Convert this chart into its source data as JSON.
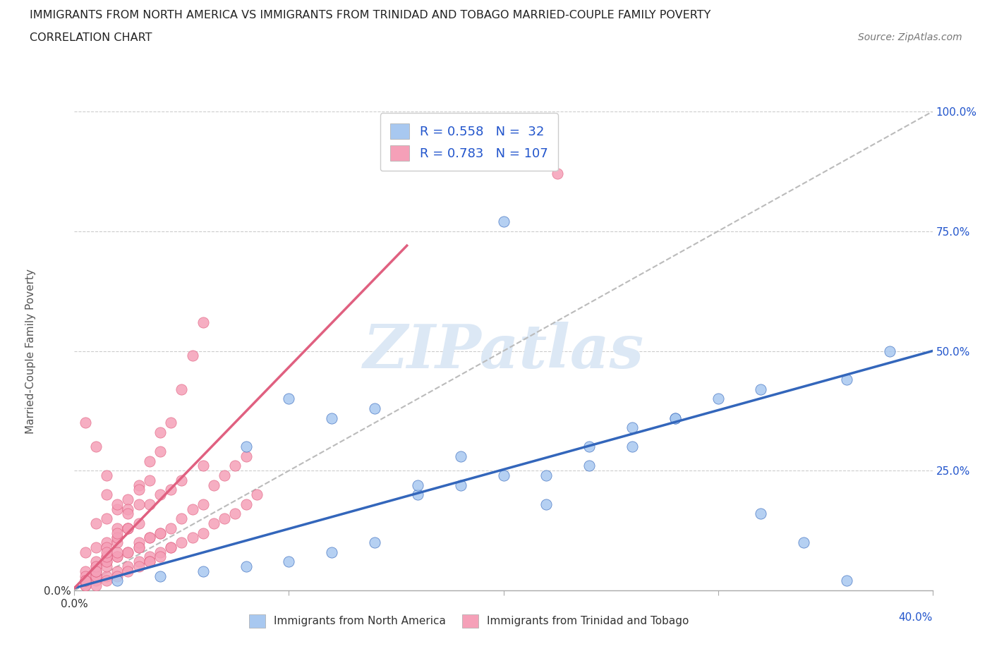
{
  "title_line1": "IMMIGRANTS FROM NORTH AMERICA VS IMMIGRANTS FROM TRINIDAD AND TOBAGO MARRIED-COUPLE FAMILY POVERTY",
  "title_line2": "CORRELATION CHART",
  "source_text": "Source: ZipAtlas.com",
  "ylabel": "Married-Couple Family Poverty",
  "blue_R": 0.558,
  "blue_N": 32,
  "pink_R": 0.783,
  "pink_N": 107,
  "blue_color": "#a8c8f0",
  "pink_color": "#f5a0b8",
  "blue_line_color": "#3366bb",
  "pink_line_color": "#e06080",
  "gray_dash_color": "#bbbbbb",
  "watermark_color": "#dce8f5",
  "legend_text_color": "#2255cc",
  "background_color": "#ffffff",
  "xmin": 0.0,
  "xmax": 0.4,
  "ymin": 0.0,
  "ymax": 1.0,
  "blue_scatter_x": [
    0.02,
    0.04,
    0.06,
    0.08,
    0.1,
    0.12,
    0.14,
    0.16,
    0.18,
    0.2,
    0.22,
    0.24,
    0.26,
    0.28,
    0.3,
    0.32,
    0.34,
    0.36,
    0.38,
    0.2,
    0.08,
    0.1,
    0.12,
    0.16,
    0.22,
    0.24,
    0.28,
    0.32,
    0.36,
    0.26,
    0.18,
    0.14
  ],
  "blue_scatter_y": [
    0.02,
    0.03,
    0.04,
    0.05,
    0.06,
    0.08,
    0.1,
    0.2,
    0.22,
    0.24,
    0.18,
    0.26,
    0.3,
    0.36,
    0.4,
    0.16,
    0.1,
    0.02,
    0.5,
    0.77,
    0.3,
    0.4,
    0.36,
    0.22,
    0.24,
    0.3,
    0.36,
    0.42,
    0.44,
    0.34,
    0.28,
    0.38
  ],
  "pink_scatter_x": [
    0.005,
    0.005,
    0.005,
    0.01,
    0.01,
    0.01,
    0.01,
    0.015,
    0.015,
    0.015,
    0.015,
    0.015,
    0.02,
    0.02,
    0.02,
    0.02,
    0.025,
    0.025,
    0.025,
    0.025,
    0.03,
    0.03,
    0.03,
    0.03,
    0.035,
    0.035,
    0.035,
    0.04,
    0.04,
    0.04,
    0.045,
    0.045,
    0.045,
    0.05,
    0.05,
    0.05,
    0.055,
    0.055,
    0.06,
    0.06,
    0.06,
    0.065,
    0.065,
    0.07,
    0.07,
    0.075,
    0.075,
    0.08,
    0.08,
    0.085,
    0.01,
    0.01,
    0.015,
    0.015,
    0.02,
    0.02,
    0.025,
    0.025,
    0.03,
    0.03,
    0.035,
    0.035,
    0.04,
    0.04,
    0.045,
    0.005,
    0.01,
    0.015,
    0.02,
    0.005,
    0.01,
    0.015,
    0.02,
    0.025,
    0.005,
    0.01,
    0.015,
    0.005,
    0.01,
    0.015,
    0.02,
    0.005,
    0.01,
    0.015,
    0.02,
    0.025,
    0.03,
    0.035,
    0.04,
    0.01,
    0.02,
    0.025,
    0.03,
    0.035,
    0.04,
    0.045,
    0.05,
    0.055,
    0.06,
    0.005,
    0.01,
    0.015,
    0.02,
    0.025,
    0.03,
    0.035,
    0.225
  ],
  "pink_scatter_y": [
    0.01,
    0.04,
    0.08,
    0.02,
    0.05,
    0.09,
    0.14,
    0.03,
    0.06,
    0.1,
    0.15,
    0.2,
    0.04,
    0.07,
    0.11,
    0.17,
    0.05,
    0.08,
    0.13,
    0.19,
    0.06,
    0.09,
    0.14,
    0.22,
    0.07,
    0.11,
    0.18,
    0.08,
    0.12,
    0.2,
    0.09,
    0.13,
    0.21,
    0.1,
    0.15,
    0.23,
    0.11,
    0.17,
    0.12,
    0.18,
    0.26,
    0.14,
    0.22,
    0.15,
    0.24,
    0.16,
    0.26,
    0.18,
    0.28,
    0.2,
    0.01,
    0.03,
    0.02,
    0.05,
    0.03,
    0.07,
    0.04,
    0.08,
    0.05,
    0.1,
    0.06,
    0.11,
    0.07,
    0.12,
    0.09,
    0.02,
    0.04,
    0.07,
    0.1,
    0.03,
    0.06,
    0.09,
    0.13,
    0.17,
    0.01,
    0.03,
    0.06,
    0.02,
    0.04,
    0.07,
    0.11,
    0.02,
    0.05,
    0.08,
    0.12,
    0.16,
    0.21,
    0.27,
    0.33,
    0.04,
    0.08,
    0.13,
    0.18,
    0.23,
    0.29,
    0.35,
    0.42,
    0.49,
    0.56,
    0.35,
    0.3,
    0.24,
    0.18,
    0.13,
    0.09,
    0.06,
    0.87
  ],
  "blue_trendline_x": [
    0.0,
    0.4
  ],
  "blue_trendline_y": [
    0.005,
    0.5
  ],
  "pink_trendline_x": [
    0.0,
    0.155
  ],
  "pink_trendline_y": [
    0.005,
    0.72
  ],
  "gray_refline_x": [
    0.0,
    0.4
  ],
  "gray_refline_y": [
    0.0,
    1.0
  ],
  "hgrid_lines": [
    0.25,
    0.5,
    0.75,
    1.0
  ]
}
